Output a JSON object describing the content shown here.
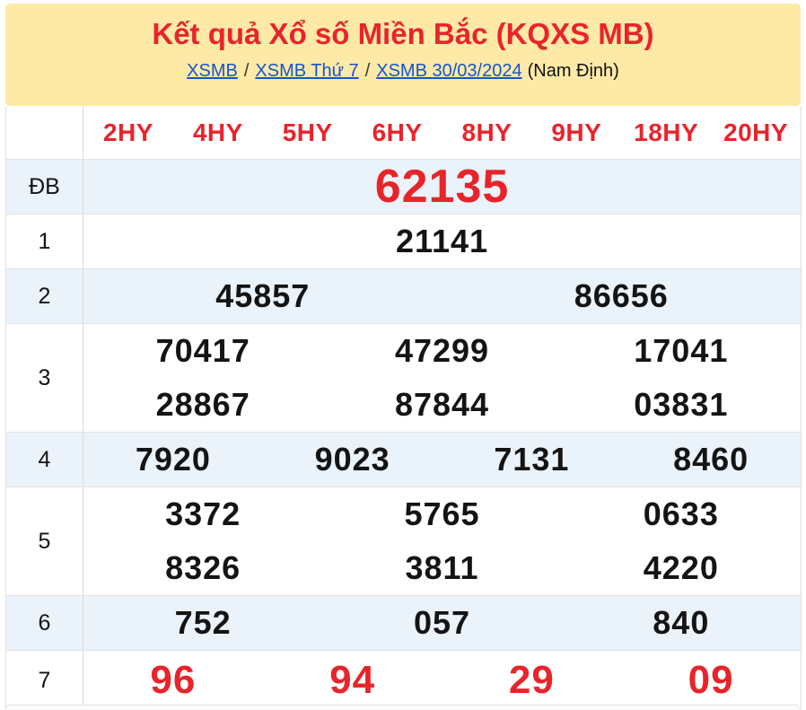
{
  "header": {
    "title": "Kết quả Xổ số Miền Bắc (KQXS MB)",
    "breadcrumb": {
      "items": [
        {
          "label": "XSMB"
        },
        {
          "label": "XSMB Thứ 7"
        },
        {
          "label": "XSMB 30/03/2024"
        }
      ],
      "separator": "/",
      "suffix": "(Nam Định)"
    }
  },
  "table": {
    "column_headers": [
      "2HY",
      "4HY",
      "5HY",
      "6HY",
      "8HY",
      "9HY",
      "18HY",
      "20HY"
    ],
    "rows": [
      {
        "label": "ĐB",
        "variant": "special-large",
        "shaded": true,
        "lines": [
          [
            "62135"
          ]
        ]
      },
      {
        "label": "1",
        "variant": "normal",
        "shaded": false,
        "lines": [
          [
            "21141"
          ]
        ]
      },
      {
        "label": "2",
        "variant": "normal",
        "shaded": true,
        "lines": [
          [
            "45857",
            "86656"
          ]
        ]
      },
      {
        "label": "3",
        "variant": "normal",
        "shaded": false,
        "lines": [
          [
            "70417",
            "47299",
            "17041"
          ],
          [
            "28867",
            "87844",
            "03831"
          ]
        ]
      },
      {
        "label": "4",
        "variant": "normal",
        "shaded": true,
        "lines": [
          [
            "7920",
            "9023",
            "7131",
            "8460"
          ]
        ]
      },
      {
        "label": "5",
        "variant": "normal",
        "shaded": false,
        "lines": [
          [
            "3372",
            "5765",
            "0633"
          ],
          [
            "8326",
            "3811",
            "4220"
          ]
        ]
      },
      {
        "label": "6",
        "variant": "normal",
        "shaded": true,
        "lines": [
          [
            "752",
            "057",
            "840"
          ]
        ]
      },
      {
        "label": "7",
        "variant": "special-red",
        "shaded": false,
        "lines": [
          [
            "96",
            "94",
            "29",
            "09"
          ]
        ]
      }
    ]
  },
  "colors": {
    "header_background": "#ffe9a6",
    "accent_red": "#e8242b",
    "link_blue": "#1355cc",
    "number_black": "#141414",
    "shaded_row": "#eaf2fa",
    "border": "#e3e3e3"
  }
}
